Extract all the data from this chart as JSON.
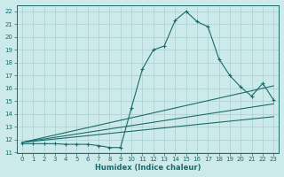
{
  "title": "",
  "xlabel": "Humidex (Indice chaleur)",
  "ylabel": "",
  "xlim": [
    -0.5,
    23.5
  ],
  "ylim": [
    11,
    22.5
  ],
  "xticks": [
    0,
    1,
    2,
    3,
    4,
    5,
    6,
    7,
    8,
    9,
    10,
    11,
    12,
    13,
    14,
    15,
    16,
    17,
    18,
    19,
    20,
    21,
    22,
    23
  ],
  "yticks": [
    11,
    12,
    13,
    14,
    15,
    16,
    17,
    18,
    19,
    20,
    21,
    22
  ],
  "bg_color": "#cceaea",
  "line_color": "#1a6b6b",
  "grid_color": "#aacece",
  "series": [
    {
      "x": [
        0,
        1,
        2,
        3,
        4,
        5,
        6,
        7,
        8,
        9,
        10,
        11,
        12,
        13,
        14,
        15,
        16,
        17,
        18,
        19,
        20,
        21,
        22,
        23
      ],
      "y": [
        11.7,
        11.7,
        11.7,
        11.7,
        11.65,
        11.65,
        11.65,
        11.55,
        11.4,
        11.4,
        14.5,
        17.5,
        19.0,
        19.3,
        21.3,
        22.0,
        21.2,
        20.8,
        18.3,
        17.0,
        16.1,
        15.4,
        16.4,
        15.1
      ],
      "has_marker": true
    },
    {
      "x": [
        0,
        23
      ],
      "y": [
        11.8,
        16.2
      ],
      "has_marker": false
    },
    {
      "x": [
        0,
        23
      ],
      "y": [
        11.8,
        14.8
      ],
      "has_marker": false
    },
    {
      "x": [
        0,
        23
      ],
      "y": [
        11.8,
        13.8
      ],
      "has_marker": false
    }
  ]
}
